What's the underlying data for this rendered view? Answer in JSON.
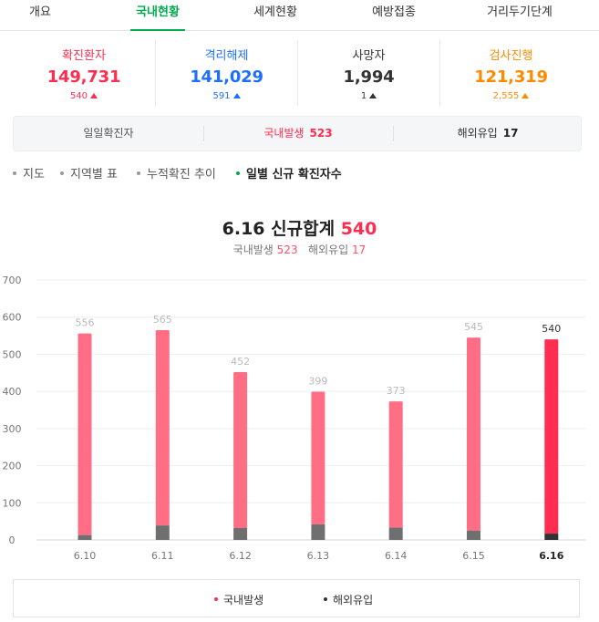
{
  "tabs": [
    {
      "label": "개요"
    },
    {
      "label": "국내현황"
    },
    {
      "label": "세계현황"
    },
    {
      "label": "예방접종"
    },
    {
      "label": "거리두기단계"
    }
  ],
  "stats": [
    {
      "label": "확진환자",
      "value": "149,731",
      "delta": "540",
      "color": "#ff2d50"
    },
    {
      "label": "격리해제",
      "value": "141,029",
      "delta": "591",
      "color": "#1f6fff"
    },
    {
      "label": "사망자",
      "value": "1,994",
      "delta": "1",
      "color": "#333333"
    },
    {
      "label": "검사진행",
      "value": "121,319",
      "delta": "2,555",
      "color": "#ff8a00"
    }
  ],
  "breakdown": {
    "daily_label": "일일확진자",
    "domestic_label": "국내발생",
    "domestic_value": "523",
    "overseas_label": "해외유입",
    "overseas_value": "17"
  },
  "subnav": [
    {
      "label": "지도"
    },
    {
      "label": "지역별 표"
    },
    {
      "label": "누적확진 추이"
    },
    {
      "label": "일별 신규 확진자수"
    }
  ],
  "chart_title": {
    "date": "6.16",
    "label": "신규합계",
    "total": "540",
    "domestic_label": "국내발생",
    "domestic_value": "523",
    "overseas_label": "해외유입",
    "overseas_value": "17"
  },
  "chart_data": {
    "type": "bar",
    "stacked": true,
    "categories": [
      "6.10",
      "6.11",
      "6.12",
      "6.13",
      "6.14",
      "6.15",
      "6.16"
    ],
    "totals": [
      556,
      565,
      452,
      399,
      373,
      545,
      540
    ],
    "series": [
      {
        "name": "국내발생",
        "values": [
          543,
          526,
          420,
          357,
          340,
          520,
          523
        ],
        "color": "#ff6e84",
        "highlight_color": "#ff2d50"
      },
      {
        "name": "해외유입",
        "values": [
          13,
          39,
          32,
          42,
          33,
          25,
          17
        ],
        "color": "#6f6f6f",
        "highlight_color": "#333333"
      }
    ],
    "ylim": [
      0,
      700
    ],
    "yticks": [
      0,
      100,
      200,
      300,
      400,
      500,
      600,
      700
    ],
    "grid": true,
    "highlight_category": "6.16",
    "legend_position": "bottom"
  }
}
